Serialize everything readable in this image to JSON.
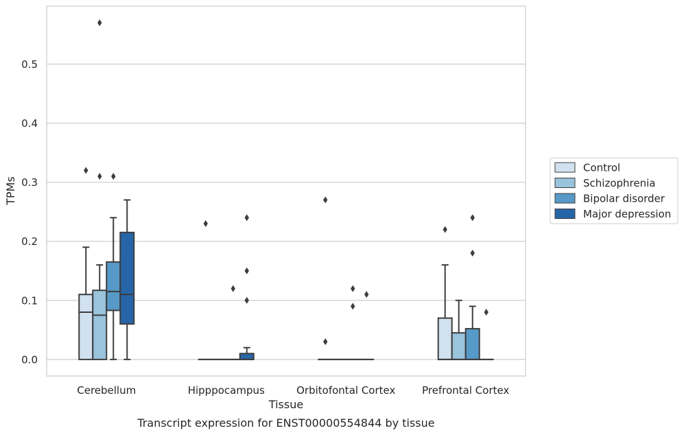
{
  "chart_data": {
    "type": "box",
    "title": "",
    "caption": "Transcript expression for ENST00000554844 by tissue",
    "xlabel": "Tissue",
    "ylabel": "TPMs",
    "ylim": [
      -0.028,
      0.598
    ],
    "yticks": [
      0.0,
      0.1,
      0.2,
      0.3,
      0.4,
      0.5
    ],
    "ytick_labels": [
      "0.0",
      "0.1",
      "0.2",
      "0.3",
      "0.4",
      "0.5"
    ],
    "grid": "horizontal",
    "legend_position": "right-outside",
    "categories": [
      "Cerebellum",
      "Hipppocampus",
      "Orbitofontal Cortex",
      "Prefrontal Cortex"
    ],
    "series": [
      {
        "name": "Control",
        "color": "#d1e1ef",
        "boxes": [
          {
            "whislo": 0.0,
            "q1": 0.0,
            "med": 0.08,
            "q3": 0.11,
            "whishi": 0.19,
            "fliers": [
              0.32
            ]
          },
          {
            "whislo": 0.0,
            "q1": 0.0,
            "med": 0.0,
            "q3": 0.0,
            "whishi": 0.0,
            "fliers": [
              0.23
            ]
          },
          {
            "whislo": 0.0,
            "q1": 0.0,
            "med": 0.0,
            "q3": 0.0,
            "whishi": 0.0,
            "fliers": [
              0.27,
              0.03
            ]
          },
          {
            "whislo": 0.0,
            "q1": 0.0,
            "med": 0.0,
            "q3": 0.07,
            "whishi": 0.16,
            "fliers": [
              0.22
            ]
          }
        ]
      },
      {
        "name": "Schizophrenia",
        "color": "#9ac3dc",
        "boxes": [
          {
            "whislo": 0.0,
            "q1": 0.0,
            "med": 0.075,
            "q3": 0.117,
            "whishi": 0.16,
            "fliers": [
              0.57,
              0.31
            ]
          },
          {
            "whislo": 0.0,
            "q1": 0.0,
            "med": 0.0,
            "q3": 0.0,
            "whishi": 0.0,
            "fliers": []
          },
          {
            "whislo": 0.0,
            "q1": 0.0,
            "med": 0.0,
            "q3": 0.0,
            "whishi": 0.0,
            "fliers": []
          },
          {
            "whislo": 0.0,
            "q1": 0.0,
            "med": 0.0,
            "q3": 0.045,
            "whishi": 0.1,
            "fliers": []
          }
        ]
      },
      {
        "name": "Bipolar disorder",
        "color": "#5799c7",
        "boxes": [
          {
            "whislo": 0.0,
            "q1": 0.083,
            "med": 0.115,
            "q3": 0.165,
            "whishi": 0.24,
            "fliers": [
              0.31
            ]
          },
          {
            "whislo": 0.0,
            "q1": 0.0,
            "med": 0.0,
            "q3": 0.0,
            "whishi": 0.0,
            "fliers": [
              0.12
            ]
          },
          {
            "whislo": 0.0,
            "q1": 0.0,
            "med": 0.0,
            "q3": 0.0,
            "whishi": 0.0,
            "fliers": [
              0.12,
              0.09
            ]
          },
          {
            "whislo": 0.0,
            "q1": 0.0,
            "med": 0.0,
            "q3": 0.052,
            "whishi": 0.09,
            "fliers": [
              0.24,
              0.18
            ]
          }
        ]
      },
      {
        "name": "Major depression",
        "color": "#2666a8",
        "boxes": [
          {
            "whislo": 0.0,
            "q1": 0.06,
            "med": 0.11,
            "q3": 0.215,
            "whishi": 0.27,
            "fliers": []
          },
          {
            "whislo": 0.0,
            "q1": 0.0,
            "med": 0.0,
            "q3": 0.01,
            "whishi": 0.02,
            "fliers": [
              0.24,
              0.15,
              0.1
            ]
          },
          {
            "whislo": 0.0,
            "q1": 0.0,
            "med": 0.0,
            "q3": 0.0,
            "whishi": 0.0,
            "fliers": [
              0.11
            ]
          },
          {
            "whislo": 0.0,
            "q1": 0.0,
            "med": 0.0,
            "q3": 0.0,
            "whishi": 0.0,
            "fliers": [
              0.08
            ]
          }
        ]
      }
    ]
  }
}
